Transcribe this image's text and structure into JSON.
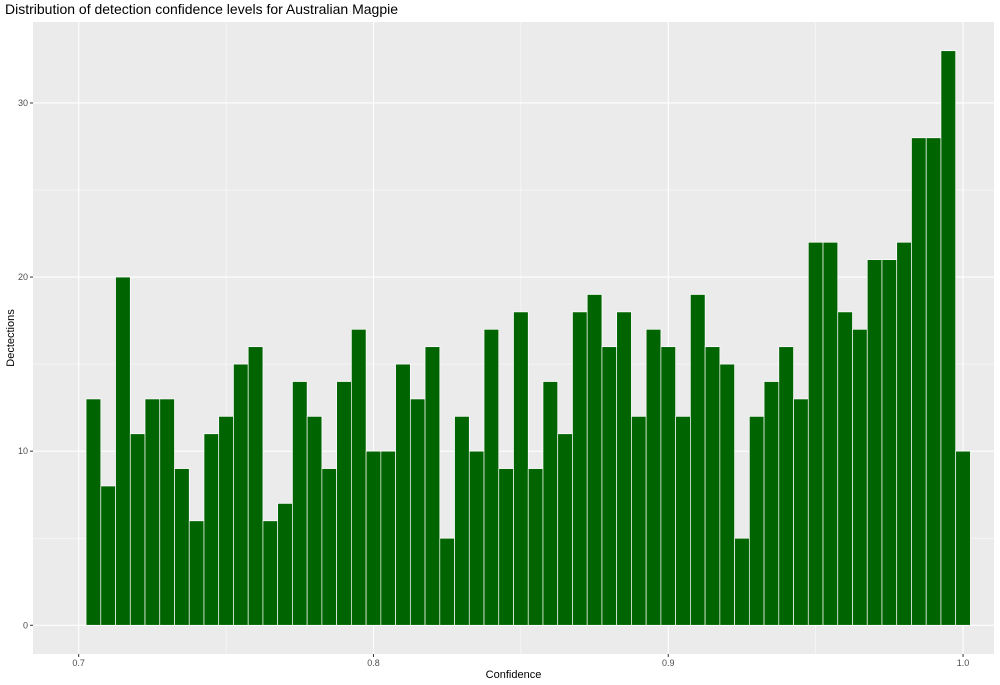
{
  "chart_data": {
    "type": "bar",
    "title": "Distribution of detection confidence levels for Australian Magpie",
    "xlabel": "Confidence",
    "ylabel": "Dectections",
    "xlim": [
      0.6845,
      1.0105
    ],
    "ylim": [
      -1.65,
      34.65
    ],
    "x_ticks": [
      0.7,
      0.8,
      0.9,
      1.0
    ],
    "x_tick_labels": [
      "0.7",
      "0.8",
      "0.9",
      "1.0"
    ],
    "y_ticks": [
      0,
      10,
      20,
      30
    ],
    "y_tick_labels": [
      "0",
      "10",
      "20",
      "30"
    ],
    "bin_width": 0.005,
    "bin_start": 0.7025,
    "values": [
      13,
      8,
      20,
      11,
      13,
      13,
      9,
      6,
      11,
      12,
      15,
      16,
      6,
      7,
      14,
      12,
      9,
      14,
      17,
      10,
      10,
      15,
      13,
      16,
      5,
      12,
      10,
      17,
      9,
      18,
      9,
      14,
      11,
      18,
      19,
      16,
      18,
      12,
      17,
      16,
      12,
      19,
      16,
      15,
      5,
      12,
      14,
      16,
      13,
      22,
      22,
      18,
      17,
      21,
      21,
      22,
      28,
      28,
      33,
      10
    ],
    "grid": true,
    "legend": "none",
    "colors": {
      "bar_fill": "#006400",
      "bar_outline": "#ffffff",
      "panel_background": "#ebebeb",
      "grid_major": "#ffffff"
    }
  }
}
